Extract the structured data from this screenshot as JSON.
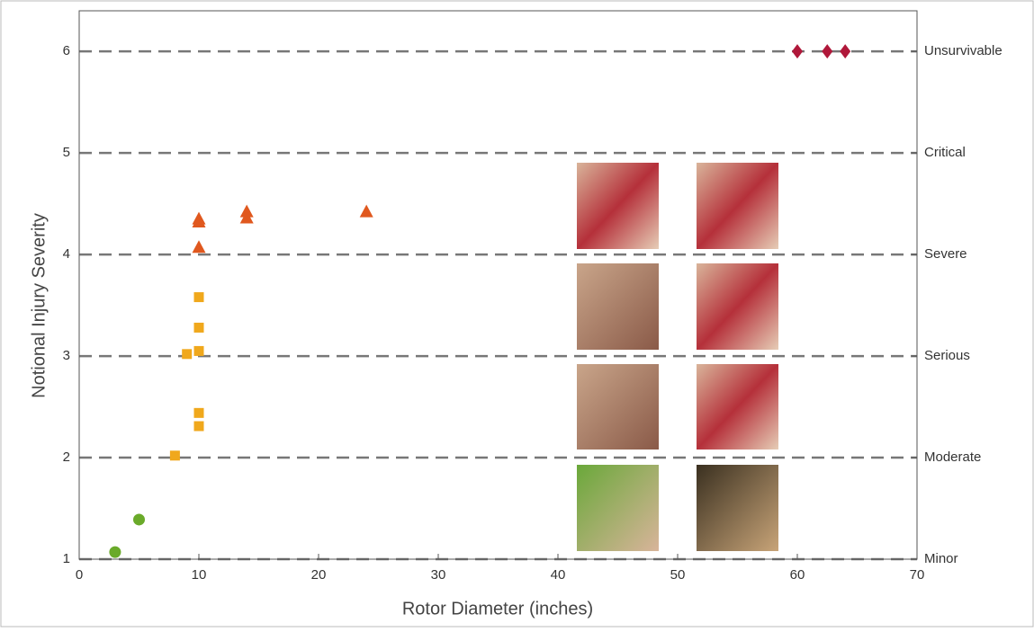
{
  "chart_data": {
    "type": "scatter",
    "xlabel": "Rotor Diameter (inches)",
    "ylabel": "Notional Injury Severity",
    "xlim": [
      0,
      70
    ],
    "xticks": [
      0,
      10,
      20,
      30,
      40,
      50,
      60,
      70
    ],
    "ylim": [
      1,
      6.4
    ],
    "yticks": [
      1,
      2,
      3,
      4,
      5,
      6
    ],
    "y2lim": [
      1,
      6.4
    ],
    "y2ticks": [
      {
        "value": 1,
        "label": "Minor"
      },
      {
        "value": 2,
        "label": "Moderate"
      },
      {
        "value": 3,
        "label": "Serious"
      },
      {
        "value": 4,
        "label": "Severe"
      },
      {
        "value": 5,
        "label": "Critical"
      },
      {
        "value": 6,
        "label": "Unsurvivable"
      }
    ],
    "grid": true,
    "series": [
      {
        "color": "#6aaa2a",
        "marker": "circle",
        "x": [
          3,
          5
        ],
        "values": [
          1.07,
          1.39
        ]
      },
      {
        "color": "#f0a81c",
        "marker": "square",
        "x": [
          8,
          9,
          10,
          10,
          10,
          10,
          10
        ],
        "values": [
          2.02,
          3.02,
          3.05,
          3.28,
          3.58,
          2.44,
          2.31
        ]
      },
      {
        "color": "#e0581e",
        "marker": "triangle",
        "x": [
          10,
          10,
          10,
          14,
          14,
          24
        ],
        "values": [
          4.32,
          4.35,
          4.07,
          4.42,
          4.36,
          4.42
        ]
      },
      {
        "color": "#b0183a",
        "marker": "diamond",
        "x": [
          60,
          62.5,
          64
        ],
        "values": [
          6,
          6,
          6
        ]
      }
    ]
  }
}
